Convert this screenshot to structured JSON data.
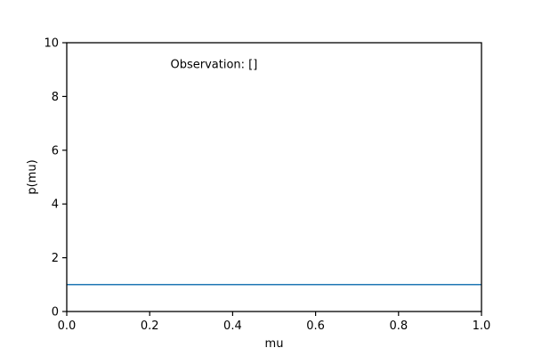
{
  "chart_data": {
    "type": "line",
    "title": "",
    "xlabel": "mu",
    "ylabel": "p(mu)",
    "xlim": [
      0,
      1
    ],
    "ylim": [
      0,
      10
    ],
    "xticks": [
      0,
      0.2,
      0.4,
      0.6,
      0.8,
      1
    ],
    "xtick_labels": [
      "0.0",
      "0.2",
      "0.4",
      "0.6",
      "0.8",
      "1.0"
    ],
    "yticks": [
      0,
      2,
      4,
      6,
      8,
      10
    ],
    "ytick_labels": [
      "0",
      "2",
      "4",
      "6",
      "8",
      "10"
    ],
    "grid": false,
    "series": [
      {
        "x": [
          0,
          1
        ],
        "y": [
          1,
          1
        ],
        "color": "#1f77b4"
      }
    ],
    "annotations": [
      {
        "text": "Observation: []",
        "x": 0.25,
        "y": 9.05
      }
    ]
  }
}
